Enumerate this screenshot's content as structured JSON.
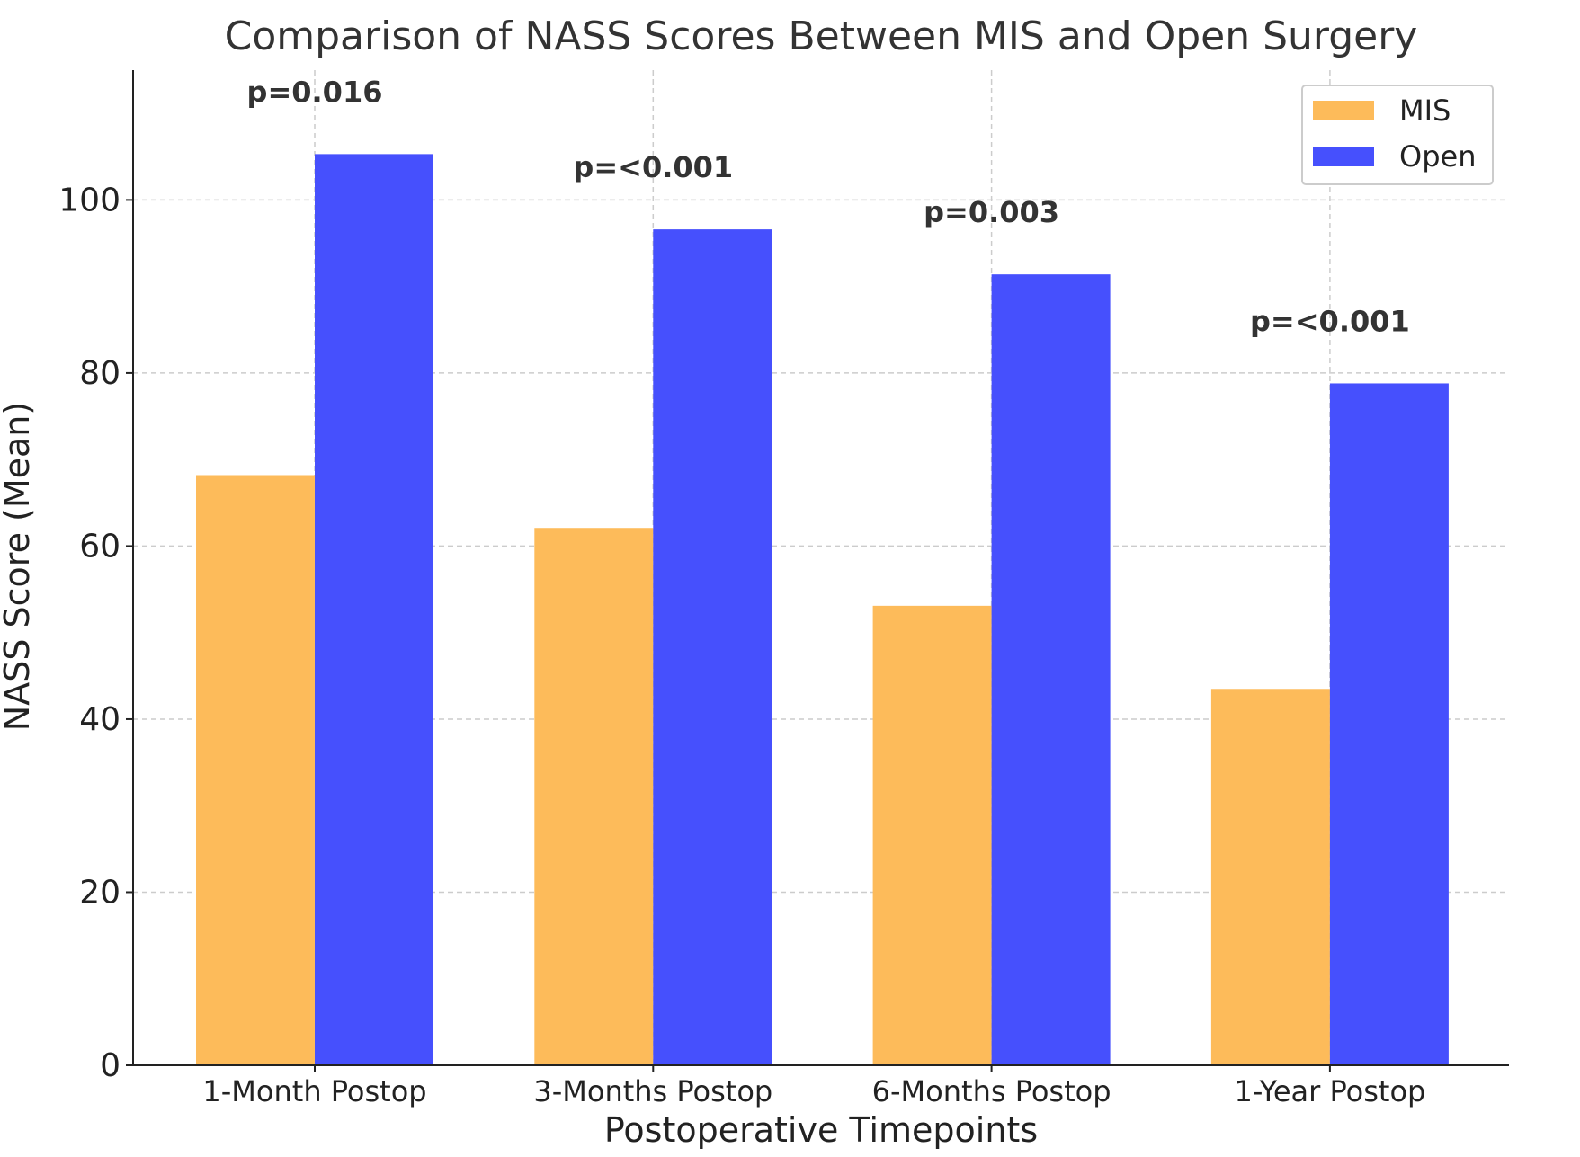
{
  "chart_data": {
    "type": "bar",
    "title": "Comparison of NASS Scores Between MIS and Open Surgery",
    "xlabel": "Postoperative Timepoints",
    "ylabel": "NASS Score (Mean)",
    "ylim": [
      0,
      115
    ],
    "yticks": [
      0,
      20,
      40,
      60,
      80,
      100
    ],
    "grid": true,
    "legend_position": "top-right",
    "categories": [
      "1-Month Postop",
      "3-Months Postop",
      "6-Months Postop",
      "1-Year Postop"
    ],
    "series": [
      {
        "name": "MIS",
        "color": "#FDBB5A",
        "values": [
          68.2,
          62.1,
          53.1,
          43.5
        ]
      },
      {
        "name": "Open",
        "color": "#4650FD",
        "values": [
          105.3,
          96.6,
          91.4,
          78.8
        ]
      }
    ],
    "annotations": [
      "p=0.016",
      "p=<0.001",
      "p=0.003",
      "p=<0.001"
    ]
  }
}
